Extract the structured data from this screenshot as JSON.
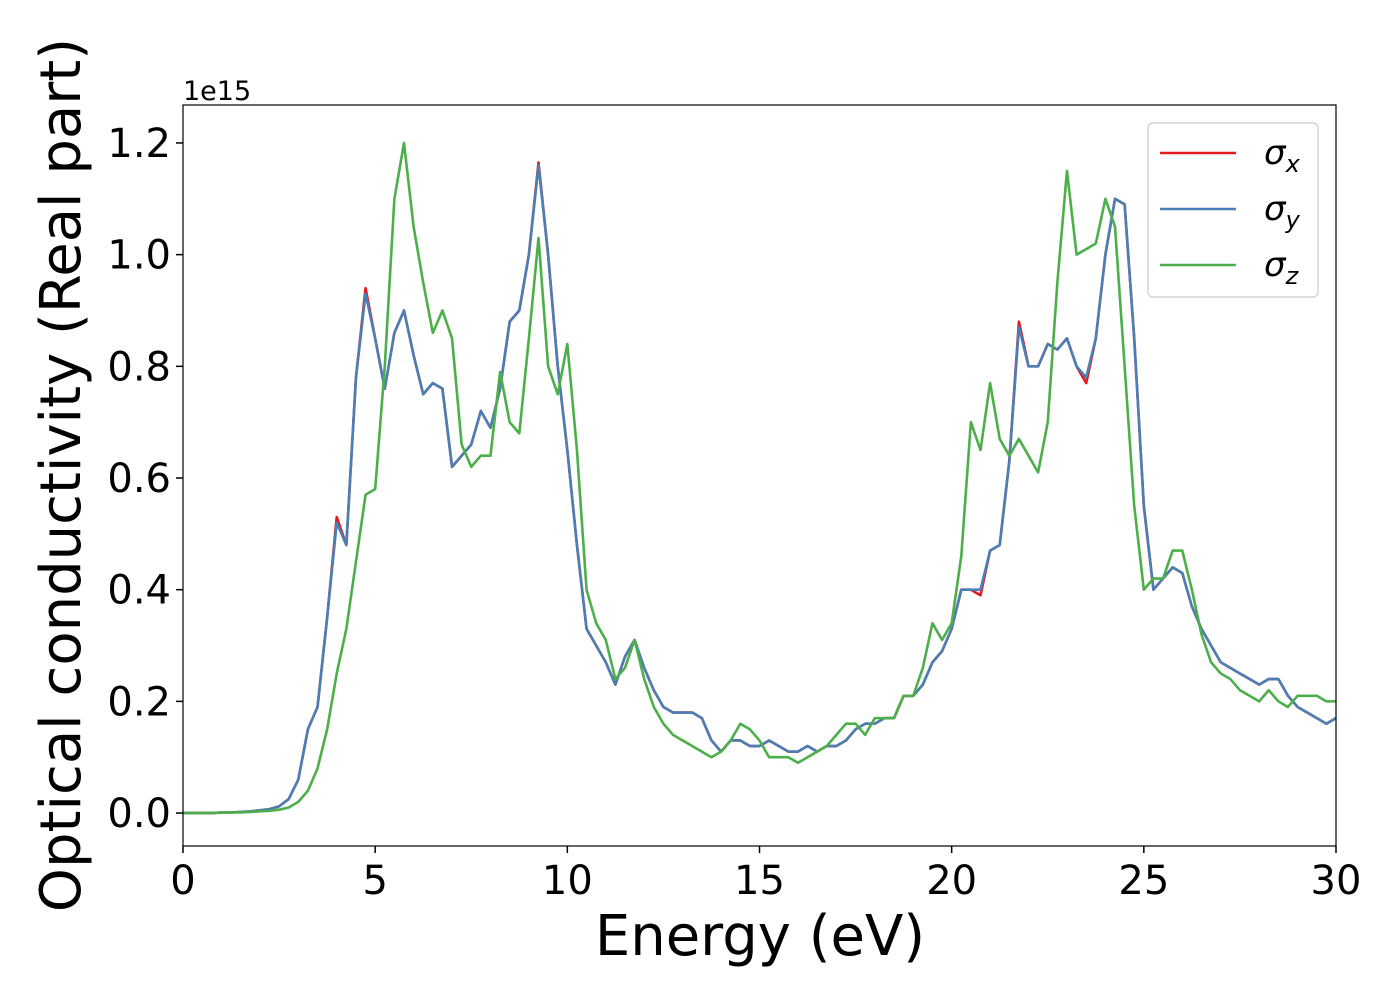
{
  "chart_data": {
    "type": "line",
    "x_label": "Energy (eV)",
    "y_label": "Optical conductivity (Real part)",
    "y_offset_text": "1e15",
    "xlim": [
      0,
      30
    ],
    "ylim": [
      -0.059,
      1.268
    ],
    "xticks": [
      0,
      5,
      10,
      15,
      20,
      25,
      30
    ],
    "yticks": [
      {
        "value": 0,
        "label": "0.0"
      },
      0.2,
      0.4,
      0.6,
      0.8,
      {
        "value": 1,
        "label": "1.0"
      },
      1.2
    ],
    "legend": "upper right",
    "x": [
      0,
      0.25,
      0.5,
      0.75,
      1,
      1.25,
      1.5,
      1.75,
      2,
      2.25,
      2.5,
      2.75,
      3,
      3.25,
      3.5,
      3.75,
      4,
      4.25,
      4.5,
      4.75,
      5,
      5.25,
      5.5,
      5.75,
      6,
      6.25,
      6.5,
      6.75,
      7,
      7.25,
      7.5,
      7.75,
      8,
      8.25,
      8.5,
      8.75,
      9,
      9.25,
      9.5,
      9.75,
      10,
      10.25,
      10.5,
      10.75,
      11,
      11.25,
      11.5,
      11.75,
      12,
      12.25,
      12.5,
      12.75,
      13,
      13.25,
      13.5,
      13.75,
      14,
      14.25,
      14.5,
      14.75,
      15,
      15.25,
      15.5,
      15.75,
      16,
      16.25,
      16.5,
      16.75,
      17,
      17.25,
      17.5,
      17.75,
      18,
      18.25,
      18.5,
      18.75,
      19,
      19.25,
      19.5,
      19.75,
      20,
      20.25,
      20.5,
      20.75,
      21,
      21.25,
      21.5,
      21.75,
      22,
      22.25,
      22.5,
      22.75,
      23,
      23.25,
      23.5,
      23.75,
      24,
      24.25,
      24.5,
      24.75,
      25,
      25.25,
      25.5,
      25.75,
      26,
      26.25,
      26.5,
      26.75,
      27,
      27.25,
      27.5,
      27.75,
      28,
      28.25,
      28.5,
      28.75,
      29,
      29.25,
      29.5,
      29.75,
      30
    ],
    "series": [
      {
        "name": "σx",
        "color": "#e41a1c",
        "values": [
          0,
          0,
          0,
          0,
          0.001,
          0.001,
          0.002,
          0.003,
          0.005,
          0.007,
          0.012,
          0.025,
          0.06,
          0.15,
          0.19,
          0.35,
          0.53,
          0.48,
          0.78,
          0.94,
          0.85,
          0.76,
          0.86,
          0.9,
          0.82,
          0.75,
          0.77,
          0.76,
          0.62,
          0.64,
          0.66,
          0.72,
          0.69,
          0.76,
          0.88,
          0.9,
          1.0,
          1.165,
          1.0,
          0.8,
          0.65,
          0.48,
          0.33,
          0.3,
          0.27,
          0.23,
          0.28,
          0.31,
          0.26,
          0.22,
          0.19,
          0.18,
          0.18,
          0.18,
          0.17,
          0.13,
          0.11,
          0.13,
          0.13,
          0.12,
          0.12,
          0.13,
          0.12,
          0.11,
          0.11,
          0.12,
          0.11,
          0.12,
          0.12,
          0.13,
          0.15,
          0.16,
          0.16,
          0.17,
          0.17,
          0.21,
          0.21,
          0.23,
          0.27,
          0.29,
          0.33,
          0.4,
          0.4,
          0.39,
          0.47,
          0.48,
          0.63,
          0.88,
          0.8,
          0.8,
          0.84,
          0.83,
          0.85,
          0.8,
          0.77,
          0.85,
          1.0,
          1.1,
          1.09,
          0.85,
          0.55,
          0.4,
          0.42,
          0.44,
          0.43,
          0.37,
          0.33,
          0.3,
          0.27,
          0.26,
          0.25,
          0.24,
          0.23,
          0.24,
          0.24,
          0.21,
          0.19,
          0.18,
          0.17,
          0.16,
          0.17
        ]
      },
      {
        "name": "σy",
        "color": "#4a7fb5",
        "values": [
          0,
          0,
          0,
          0,
          0.001,
          0.001,
          0.002,
          0.003,
          0.005,
          0.007,
          0.012,
          0.025,
          0.06,
          0.15,
          0.19,
          0.35,
          0.52,
          0.48,
          0.78,
          0.93,
          0.85,
          0.76,
          0.86,
          0.9,
          0.82,
          0.75,
          0.77,
          0.76,
          0.62,
          0.64,
          0.66,
          0.72,
          0.69,
          0.76,
          0.88,
          0.9,
          1.0,
          1.16,
          1.0,
          0.8,
          0.65,
          0.48,
          0.33,
          0.3,
          0.27,
          0.23,
          0.28,
          0.31,
          0.26,
          0.22,
          0.19,
          0.18,
          0.18,
          0.18,
          0.17,
          0.13,
          0.11,
          0.13,
          0.13,
          0.12,
          0.12,
          0.13,
          0.12,
          0.11,
          0.11,
          0.12,
          0.11,
          0.12,
          0.12,
          0.13,
          0.15,
          0.16,
          0.16,
          0.17,
          0.17,
          0.21,
          0.21,
          0.23,
          0.27,
          0.29,
          0.33,
          0.4,
          0.4,
          0.4,
          0.47,
          0.48,
          0.63,
          0.87,
          0.8,
          0.8,
          0.84,
          0.83,
          0.85,
          0.8,
          0.78,
          0.85,
          1.0,
          1.1,
          1.09,
          0.85,
          0.55,
          0.4,
          0.42,
          0.44,
          0.43,
          0.37,
          0.33,
          0.3,
          0.27,
          0.26,
          0.25,
          0.24,
          0.23,
          0.24,
          0.24,
          0.21,
          0.19,
          0.18,
          0.17,
          0.16,
          0.17
        ]
      },
      {
        "name": "σz",
        "color": "#4daf4a",
        "values": [
          0,
          0,
          0,
          0,
          0.001,
          0.001,
          0.001,
          0.002,
          0.003,
          0.004,
          0.006,
          0.01,
          0.02,
          0.04,
          0.08,
          0.15,
          0.25,
          0.33,
          0.45,
          0.57,
          0.58,
          0.8,
          1.1,
          1.2,
          1.05,
          0.95,
          0.86,
          0.9,
          0.85,
          0.66,
          0.62,
          0.64,
          0.64,
          0.79,
          0.7,
          0.68,
          0.85,
          1.03,
          0.8,
          0.75,
          0.84,
          0.65,
          0.4,
          0.34,
          0.31,
          0.24,
          0.26,
          0.31,
          0.24,
          0.19,
          0.16,
          0.14,
          0.13,
          0.12,
          0.11,
          0.1,
          0.11,
          0.13,
          0.16,
          0.15,
          0.13,
          0.1,
          0.1,
          0.1,
          0.09,
          0.1,
          0.11,
          0.12,
          0.14,
          0.16,
          0.16,
          0.14,
          0.17,
          0.17,
          0.17,
          0.21,
          0.21,
          0.26,
          0.34,
          0.31,
          0.34,
          0.46,
          0.7,
          0.65,
          0.77,
          0.67,
          0.64,
          0.67,
          0.64,
          0.61,
          0.7,
          0.95,
          1.15,
          1.0,
          1.01,
          1.02,
          1.1,
          1.05,
          0.8,
          0.55,
          0.4,
          0.42,
          0.42,
          0.47,
          0.47,
          0.4,
          0.32,
          0.27,
          0.25,
          0.24,
          0.22,
          0.21,
          0.2,
          0.22,
          0.2,
          0.19,
          0.21,
          0.21,
          0.21,
          0.2,
          0.2
        ]
      }
    ]
  }
}
